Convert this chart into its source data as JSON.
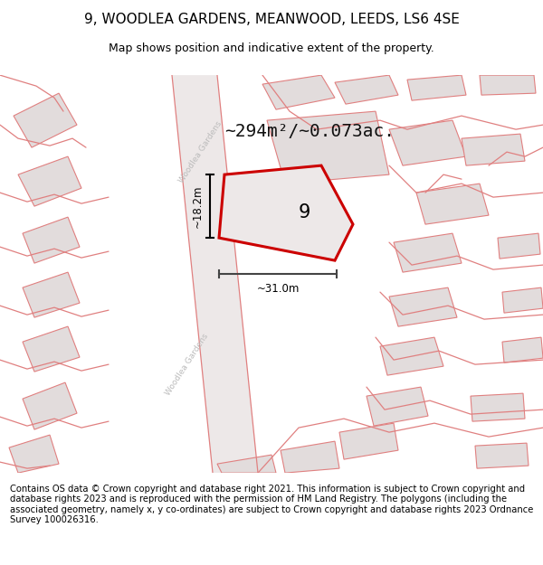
{
  "title": "9, WOODLEA GARDENS, MEANWOOD, LEEDS, LS6 4SE",
  "subtitle": "Map shows position and indicative extent of the property.",
  "footer": "Contains OS data © Crown copyright and database right 2021. This information is subject to Crown copyright and database rights 2023 and is reproduced with the permission of HM Land Registry. The polygons (including the associated geometry, namely x, y co-ordinates) are subject to Crown copyright and database rights 2023 Ordnance Survey 100026316.",
  "area_label": "~294m²/~0.073ac.",
  "width_label": "~31.0m",
  "height_label": "~18.2m",
  "property_number": "9",
  "map_bg": "#f7f3f3",
  "plot_fill": "#ede8e8",
  "plot_border": "#cc0000",
  "building_fill": "#e2dcdc",
  "building_border": "#e08080",
  "road_fill": "#f0eaea",
  "title_fontsize": 11,
  "subtitle_fontsize": 9,
  "footer_fontsize": 7.2,
  "street_color": "#bbbbbb"
}
